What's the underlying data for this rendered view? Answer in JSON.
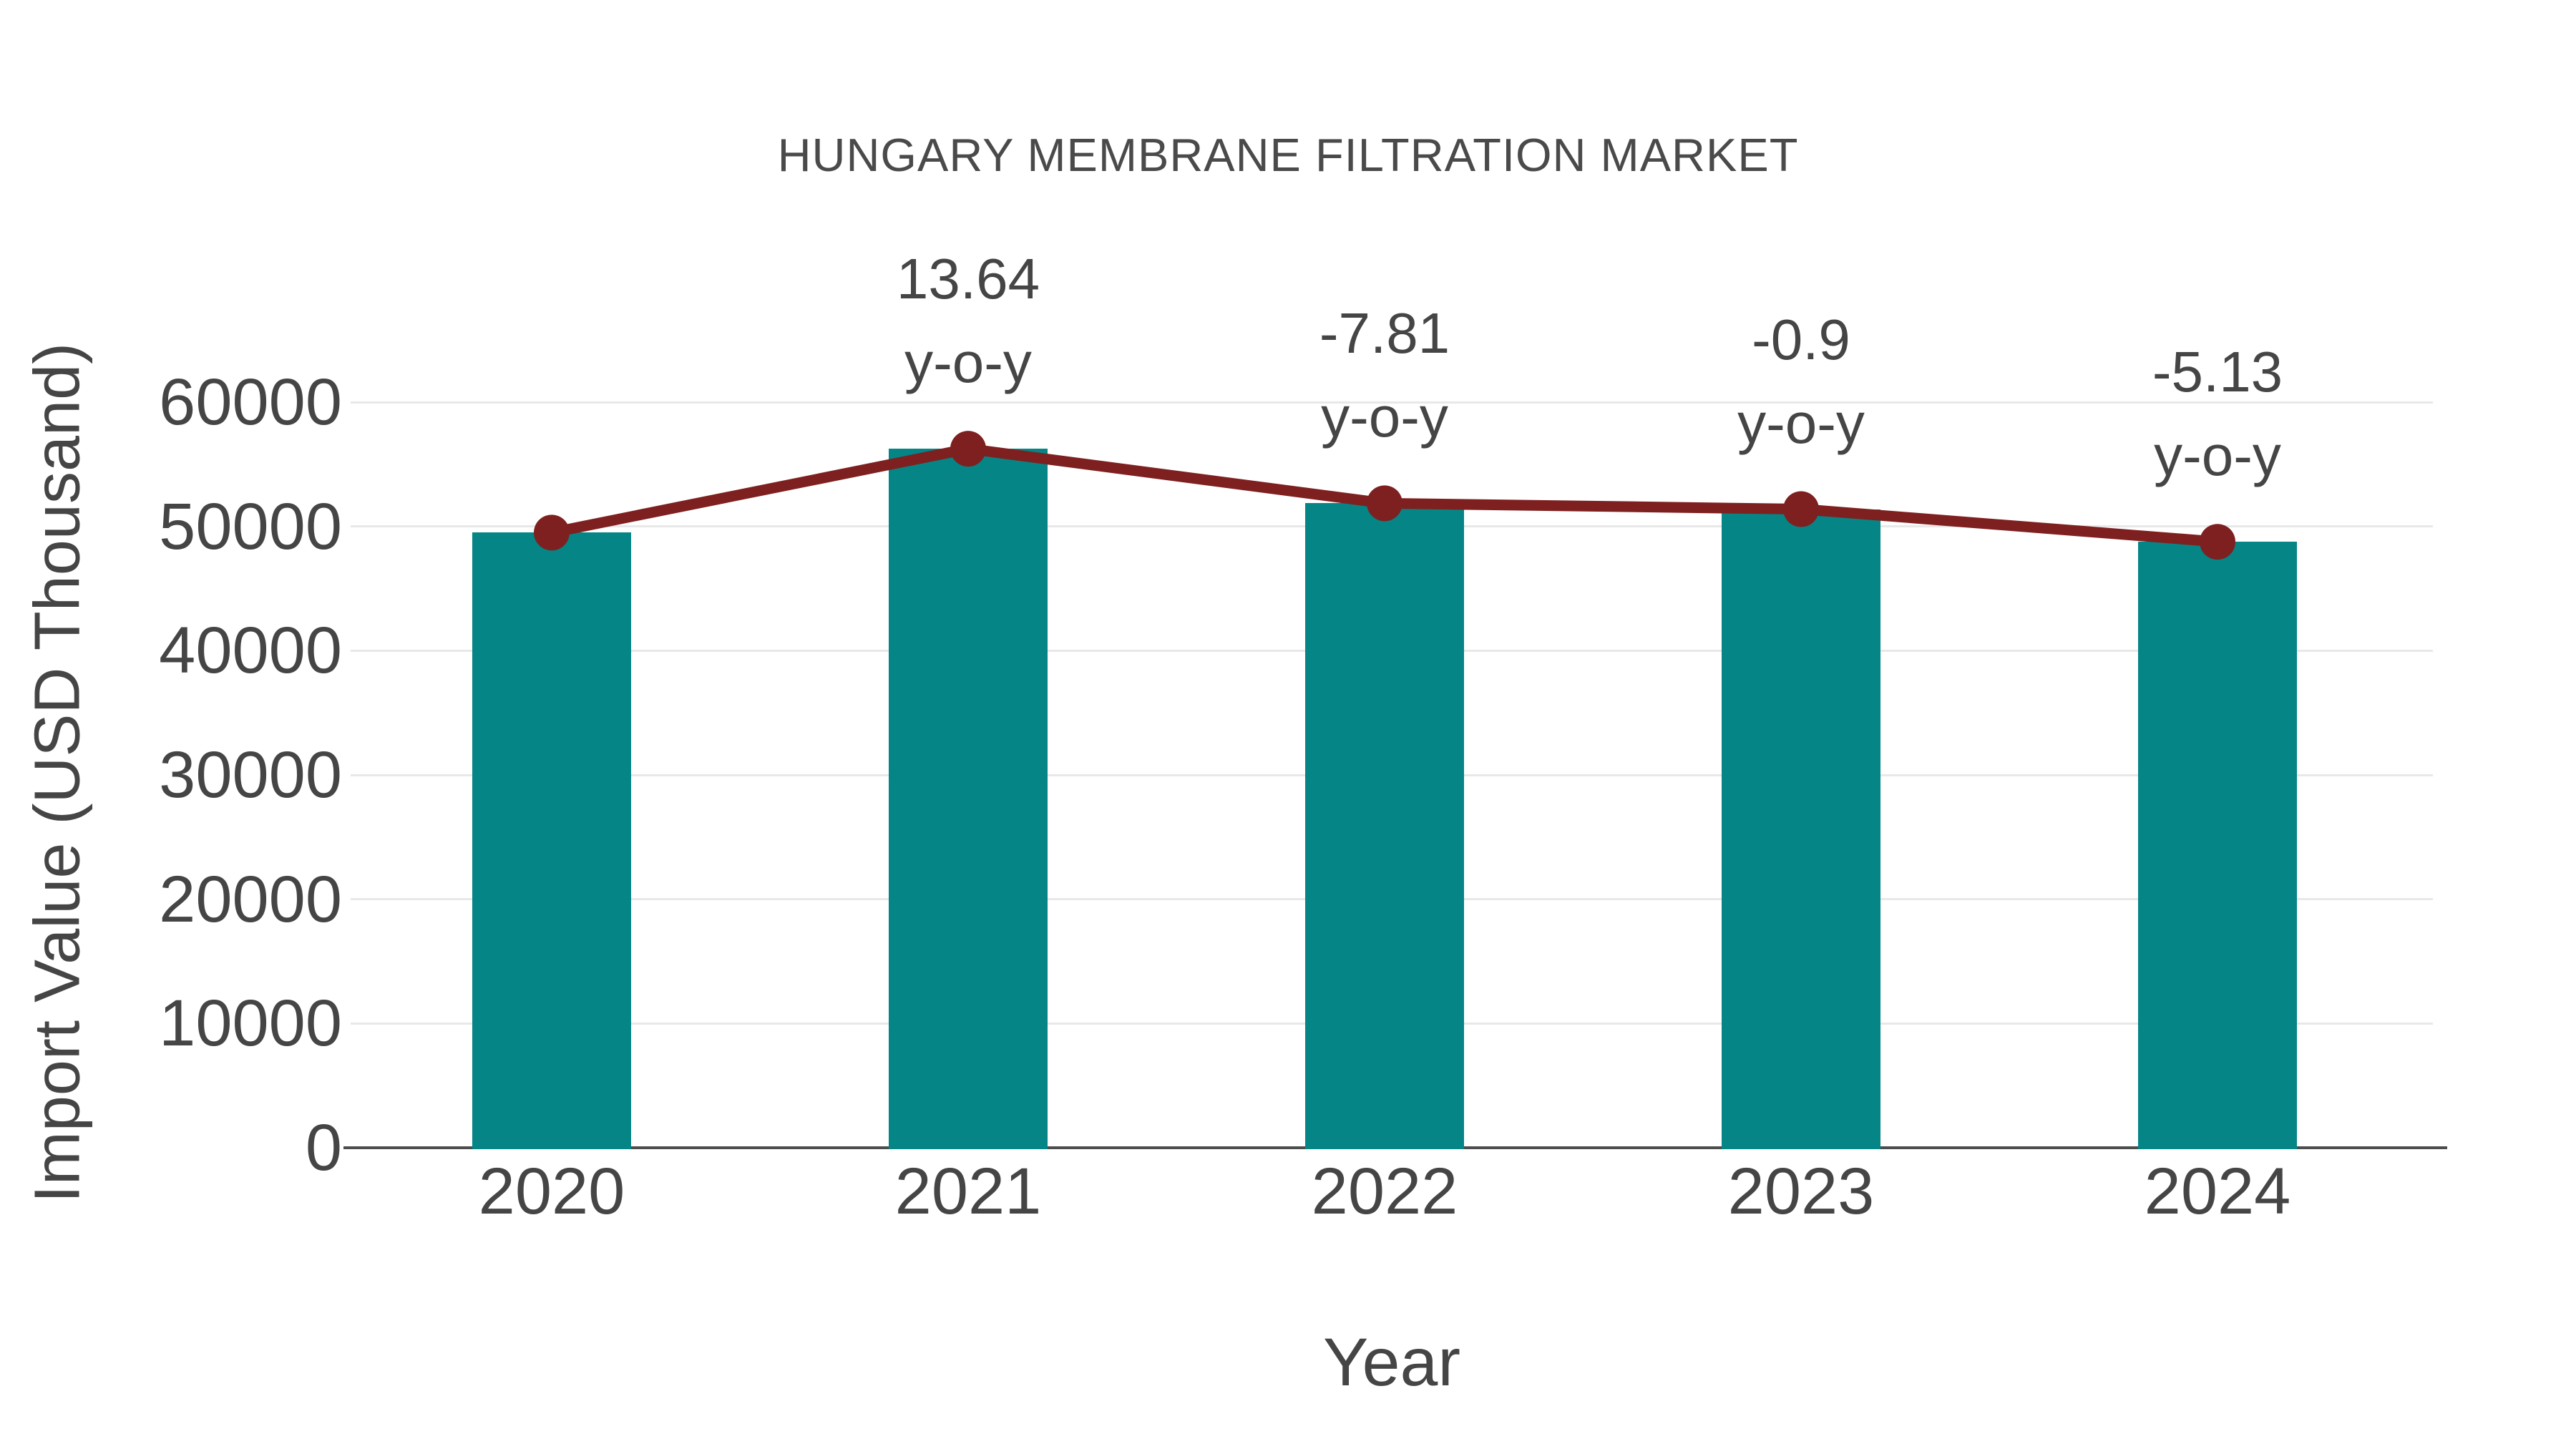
{
  "title": "HUNGARY MEMBRANE FILTRATION MARKET",
  "axes": {
    "xlabel": "Year",
    "ylabel": "Import Value (USD Thousand)"
  },
  "chart_data": {
    "type": "bar",
    "title": "HUNGARY MEMBRANE FILTRATION MARKET",
    "xlabel": "Year",
    "ylabel": "Import Value (USD Thousand)",
    "categories": [
      "2020",
      "2021",
      "2022",
      "2023",
      "2024"
    ],
    "series": [
      {
        "name": "import-value-bars",
        "type": "bar",
        "color": "#068586",
        "values": [
          49500,
          56250,
          51860,
          51390,
          48760
        ]
      },
      {
        "name": "yoy-trend-line",
        "type": "line",
        "color": "#7E2020",
        "values": [
          49500,
          56250,
          51860,
          51390,
          48760
        ]
      }
    ],
    "annotations": [
      {
        "category": "2021",
        "lines": [
          "13.64",
          "y-o-y"
        ]
      },
      {
        "category": "2022",
        "lines": [
          "-7.81",
          "y-o-y"
        ]
      },
      {
        "category": "2023",
        "lines": [
          "-0.9",
          "y-o-y"
        ]
      },
      {
        "category": "2024",
        "lines": [
          "-5.13",
          "y-o-y"
        ]
      }
    ],
    "yticks": [
      0,
      10000,
      20000,
      30000,
      40000,
      50000,
      60000
    ],
    "ylim": [
      0,
      60000
    ],
    "grid": true,
    "legend_position": "none"
  },
  "colors": {
    "bar": "#068586",
    "line": "#7E2020",
    "marker": "#7E2020",
    "text": "#454545",
    "grid": "#e8e8e8",
    "axis": "#4d4d4d",
    "background": "#ffffff"
  }
}
